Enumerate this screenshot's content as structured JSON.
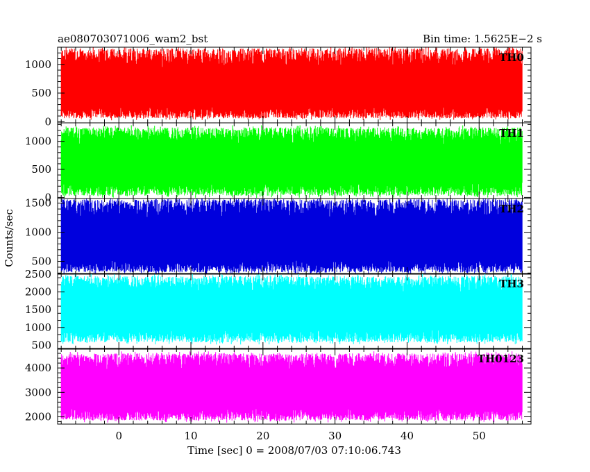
{
  "chart_data": {
    "type": "line",
    "title_left": "ae080703071006_wam2_bst",
    "title_right": "Bin time: 1.5625E−2 s",
    "xlabel": "Time [sec] 0 = 2008/07/03 07:10:06.743",
    "ylabel": "Counts/sec",
    "xlim": [
      -8.5,
      57.2
    ],
    "x_ticks": [
      0,
      10,
      20,
      30,
      40,
      50
    ],
    "x_data_range": [
      -8,
      56
    ],
    "panels": [
      {
        "name": "TH0",
        "color": "#ff0000",
        "ylim": [
          -20,
          1300
        ],
        "y_ticks": [
          0,
          500,
          1000
        ],
        "mean": 520,
        "noise_low": 60,
        "noise_high": 1280
      },
      {
        "name": "TH1",
        "color": "#00ff00",
        "ylim": [
          -20,
          1330
        ],
        "y_ticks": [
          0,
          500,
          1000
        ],
        "mean": 560,
        "noise_low": 30,
        "noise_high": 1250
      },
      {
        "name": "TH2",
        "color": "#0000dd",
        "ylim": [
          280,
          1580
        ],
        "y_ticks": [
          500,
          1000,
          1500
        ],
        "mean": 810,
        "noise_low": 310,
        "noise_high": 1570
      },
      {
        "name": "TH3",
        "color": "#00ffff",
        "ylim": [
          390,
          2520
        ],
        "y_ticks": [
          500,
          1000,
          1500,
          2000,
          2500
        ],
        "mean": 1440,
        "noise_low": 580,
        "noise_high": 2450
      },
      {
        "name": "TH0123",
        "color": "#ff00ff",
        "ylim": [
          1700,
          4800
        ],
        "y_ticks": [
          2000,
          3000,
          4000
        ],
        "mean": 3020,
        "noise_low": 1850,
        "noise_high": 4600
      }
    ]
  }
}
